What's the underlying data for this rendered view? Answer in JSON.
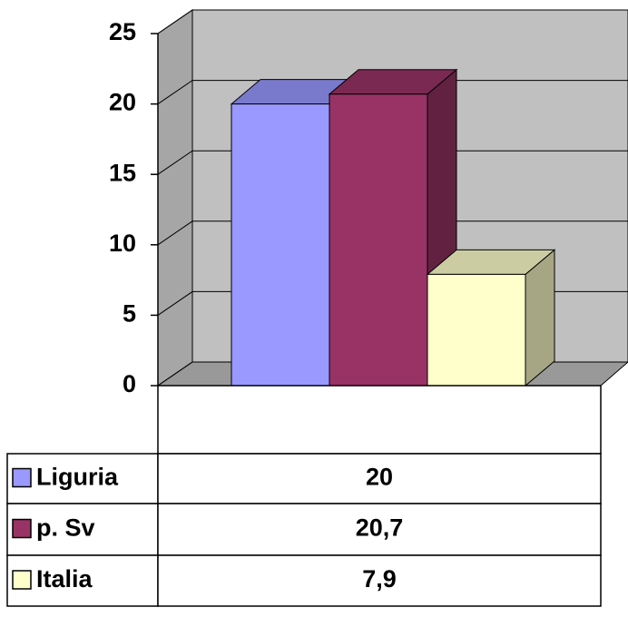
{
  "chart_data": {
    "type": "bar",
    "series": [
      {
        "name": "Liguria",
        "color": "#9999ff",
        "values": [
          20
        ],
        "value_labels": [
          "20"
        ]
      },
      {
        "name": "p. Sv",
        "color": "#993366",
        "values": [
          20.7
        ],
        "value_labels": [
          "20,7"
        ]
      },
      {
        "name": "Italia",
        "color": "#ffffcc",
        "values": [
          7.9
        ],
        "value_labels": [
          "7,9"
        ]
      }
    ],
    "ylim": [
      0,
      25
    ],
    "yticks": [
      0,
      5,
      10,
      15,
      20,
      25
    ],
    "grid": true
  }
}
